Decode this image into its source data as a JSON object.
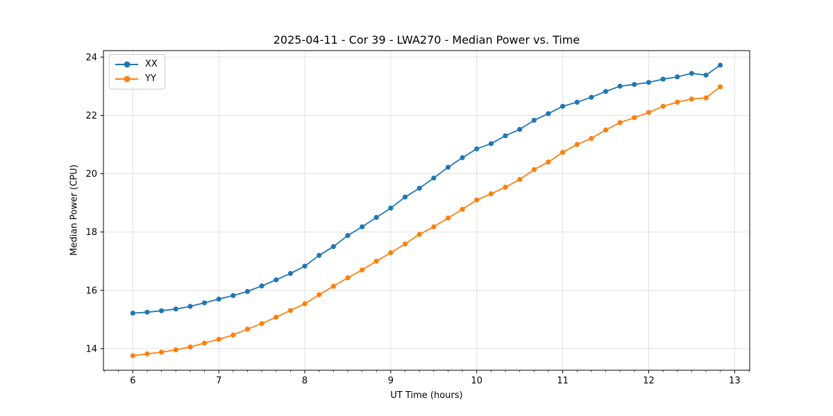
{
  "figure": {
    "background": "#ffffff"
  },
  "chart_data": {
    "type": "line",
    "title": "2025-04-11 - Cor 39 - LWA270 - Median Power vs. Time",
    "xlabel": "UT Time (hours)",
    "ylabel": "Median Power (CPU)",
    "xlim": [
      5.658,
      13.175
    ],
    "ylim": [
      13.26,
      24.22
    ],
    "xticks": [
      6,
      7,
      8,
      9,
      10,
      11,
      12,
      13
    ],
    "yticks": [
      14,
      16,
      18,
      20,
      22,
      24
    ],
    "x_minor_tick_step": 0.16667,
    "grid": true,
    "grid_color": "#e0e0e0",
    "axis_color": "#000000",
    "legend_position": "upper-left",
    "x": [
      6.0,
      6.167,
      6.333,
      6.5,
      6.667,
      6.833,
      7.0,
      7.167,
      7.333,
      7.5,
      7.667,
      7.833,
      8.0,
      8.167,
      8.333,
      8.5,
      8.667,
      8.833,
      9.0,
      9.167,
      9.333,
      9.5,
      9.667,
      9.833,
      10.0,
      10.167,
      10.333,
      10.5,
      10.667,
      10.833,
      11.0,
      11.167,
      11.333,
      11.5,
      11.667,
      11.833,
      12.0,
      12.167,
      12.333,
      12.5,
      12.667,
      12.833
    ],
    "series": [
      {
        "name": "XX",
        "color": "#1f77b4",
        "marker": "circle",
        "values": [
          15.22,
          15.25,
          15.3,
          15.36,
          15.45,
          15.57,
          15.7,
          15.82,
          15.96,
          16.15,
          16.36,
          16.58,
          16.83,
          17.2,
          17.5,
          17.88,
          18.18,
          18.5,
          18.82,
          19.2,
          19.5,
          19.85,
          20.22,
          20.55,
          20.85,
          21.03,
          21.3,
          21.52,
          21.83,
          22.06,
          22.31,
          22.45,
          22.62,
          22.82,
          23.0,
          23.06,
          23.13,
          23.24,
          23.32,
          23.44,
          23.38,
          23.72
        ]
      },
      {
        "name": "YY",
        "color": "#ff7f0e",
        "marker": "circle",
        "values": [
          13.76,
          13.82,
          13.88,
          13.96,
          14.06,
          14.19,
          14.32,
          14.47,
          14.67,
          14.86,
          15.08,
          15.31,
          15.54,
          15.85,
          16.14,
          16.43,
          16.7,
          17.0,
          17.29,
          17.59,
          17.92,
          18.18,
          18.48,
          18.78,
          19.1,
          19.31,
          19.54,
          19.8,
          20.14,
          20.4,
          20.73,
          21.0,
          21.21,
          21.5,
          21.75,
          21.92,
          22.1,
          22.31,
          22.45,
          22.56,
          22.6,
          22.98
        ]
      }
    ]
  }
}
